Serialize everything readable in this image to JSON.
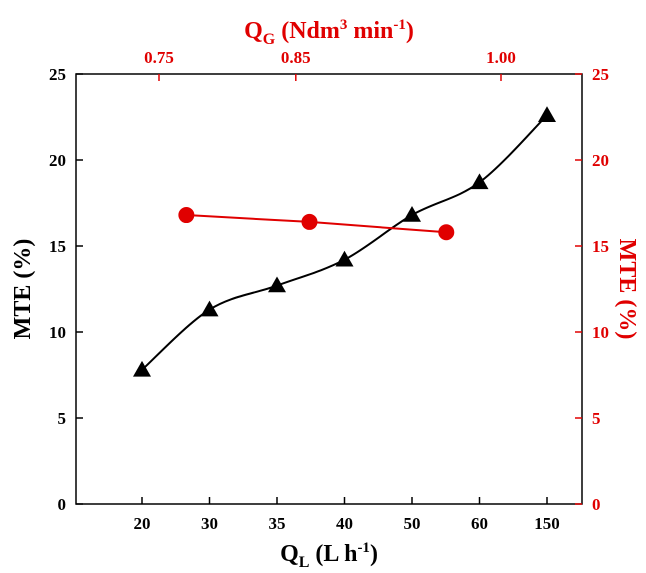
{
  "chart_data": {
    "type": "line",
    "bottom_axis": {
      "label_main": "Q",
      "label_sub": "L",
      "label_rest": " (L h",
      "label_sup": "-1",
      "label_close": ")",
      "categories": [
        "20",
        "30",
        "35",
        "40",
        "50",
        "60",
        "150"
      ]
    },
    "top_axis": {
      "label_main": "Q",
      "label_sub": "G",
      "label_rest": " (Ndm",
      "label_sup1": "3",
      "label_mid": " min",
      "label_sup2": "-1",
      "label_close": ")",
      "tick_labels": [
        "0.75",
        "0.85",
        "1.00"
      ]
    },
    "left_axis": {
      "label": "MTE (%)",
      "ylim": [
        0,
        25
      ],
      "ticks": [
        "0",
        "5",
        "10",
        "15",
        "20",
        "25"
      ]
    },
    "right_axis": {
      "label": "MTE (%)",
      "ylim": [
        0,
        25
      ],
      "ticks": [
        "0",
        "5",
        "10",
        "15",
        "20",
        "25"
      ]
    },
    "series": [
      {
        "axis": "bottom-left",
        "marker": "triangle",
        "color": "#000000",
        "x": [
          "20",
          "30",
          "35",
          "40",
          "50",
          "60",
          "150"
        ],
        "values": [
          7.8,
          11.3,
          12.7,
          14.2,
          16.8,
          18.7,
          22.6
        ]
      },
      {
        "axis": "top-right",
        "marker": "circle",
        "color": "#e00000",
        "x": [
          0.77,
          0.86,
          0.96
        ],
        "values": [
          16.8,
          16.4,
          15.8
        ]
      }
    ],
    "grid": false,
    "legend": "none"
  }
}
